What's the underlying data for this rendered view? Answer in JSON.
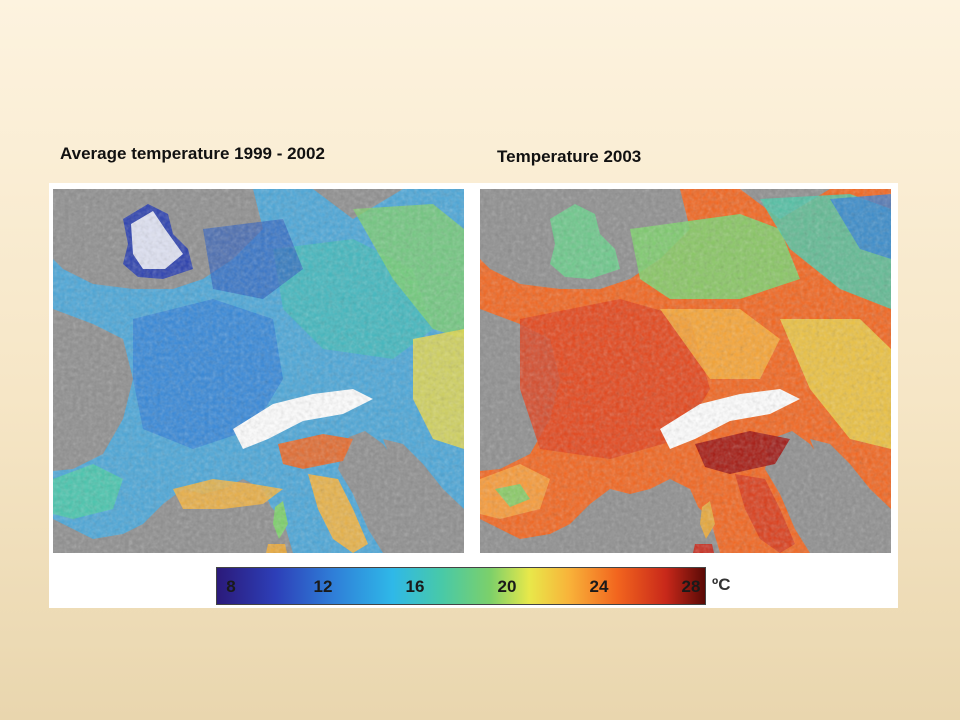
{
  "titles": {
    "left": "Average temperature 1999 - 2002",
    "right": "Temperature 2003"
  },
  "legend": {
    "ticks": [
      {
        "label": "8",
        "value": 8
      },
      {
        "label": "12",
        "value": 12
      },
      {
        "label": "16",
        "value": 16
      },
      {
        "label": "20",
        "value": 20
      },
      {
        "label": "24",
        "value": 24
      },
      {
        "label": "28",
        "value": 28
      }
    ],
    "min": 8,
    "max": 28,
    "unit": "ºC",
    "colors": [
      "#2b1a7a",
      "#2d3fb8",
      "#2f7fd8",
      "#2fb8e8",
      "#48c9a8",
      "#7cd06a",
      "#e8e84a",
      "#f8b43a",
      "#f2651e",
      "#c8281a",
      "#5a0a06"
    ]
  },
  "maps": [
    {
      "id": "avg-1999-2002",
      "dominant_temperature": "cool (blue-green)",
      "alps": "snow/white"
    },
    {
      "id": "2003",
      "dominant_temperature": "hot (orange-red)",
      "alps": "snow/white"
    }
  ],
  "colors": {
    "sea": "#8e8e8e",
    "snow": "#ffffff"
  }
}
